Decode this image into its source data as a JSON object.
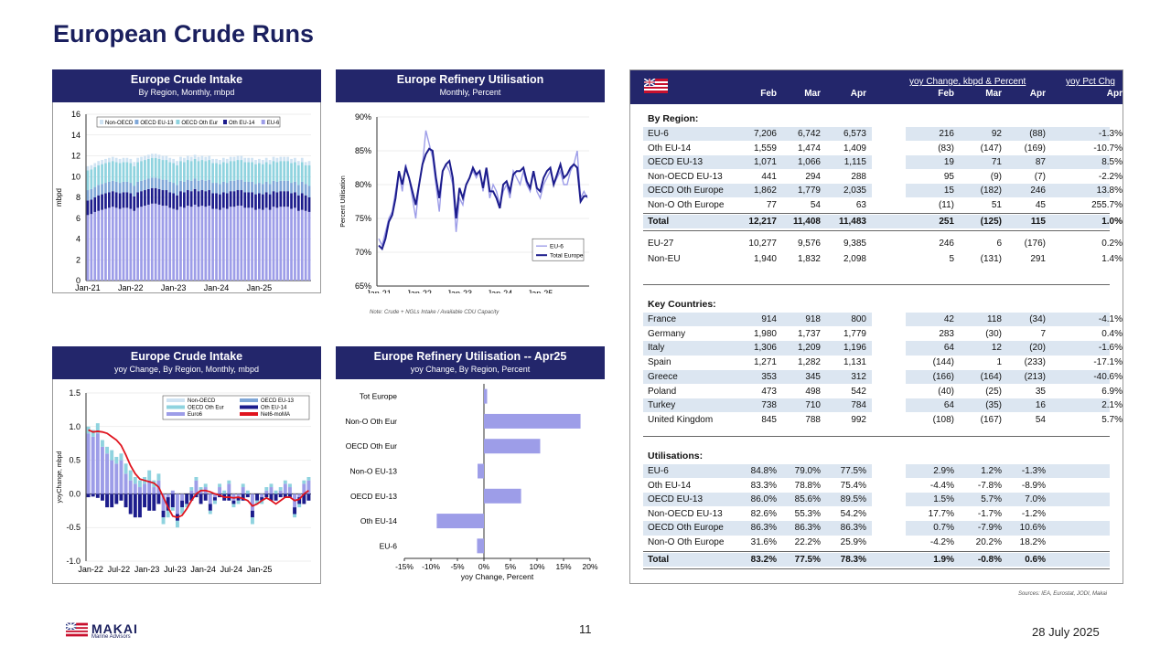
{
  "page": {
    "title": "European Crude Runs",
    "page_number": "11",
    "date": "28 July 2025",
    "sources": "Sources: IEA, Eurostat, JODI, Makai",
    "logo_text": "MAKAI",
    "logo_sub": "Marine Advisors"
  },
  "panels": {
    "p1": {
      "title": "Europe Crude Intake",
      "subtitle": "By Region, Monthly, mbpd"
    },
    "p2": {
      "title": "Europe Refinery Utilisation",
      "subtitle": "Monthly, Percent",
      "note": "Note: Crude + NGLs Intake / Available CDU Capacity"
    },
    "p3": {
      "title": "Europe Crude Intake",
      "subtitle": "yoy Change, By Region, Monthly, mbpd"
    },
    "p4": {
      "title": "Europe Refinery Utilisation -- Apr25",
      "subtitle": "yoy Change, By Region, Percent"
    }
  },
  "colors": {
    "navy": "#23266b",
    "eu6": "#9d9de8",
    "oth14": "#1c1c8c",
    "oecdoth": "#8fd3df",
    "oecd13": "#7fa7d8",
    "nonoecd": "#cfe3f3",
    "red": "#e0141e"
  },
  "chart_data": [
    {
      "type": "bar",
      "stacked": true,
      "ylabel": "mbpd",
      "ylim": [
        0,
        16
      ],
      "yticks": [
        "0",
        "2",
        "4",
        "6",
        "8",
        "10",
        "12",
        "14",
        "16"
      ],
      "xticks": [
        "Jan-21",
        "Jan-22",
        "Jan-23",
        "Jan-24",
        "Jan-25"
      ],
      "legend": [
        "Non-OECD",
        "OECD EU-13",
        "OECD Oth Eur",
        "Oth EU-14",
        "EU-6"
      ],
      "series": [
        {
          "name": "EU-6",
          "values": [
            6.3,
            6.4,
            6.6,
            6.7,
            6.8,
            6.9,
            7.0,
            7.1,
            7.0,
            6.9,
            7.0,
            7.0,
            6.9,
            6.7,
            7.0,
            7.1,
            7.2,
            7.3,
            7.4,
            7.4,
            7.3,
            7.2,
            7.2,
            7.0,
            6.9,
            6.8,
            7.1,
            7.0,
            7.2,
            7.1,
            7.3,
            7.1,
            7.2,
            7.1,
            7.2,
            6.9,
            6.9,
            6.8,
            7.0,
            6.9,
            7.1,
            7.1,
            7.2,
            7.2,
            7.0,
            7.0,
            7.0,
            6.8,
            6.9,
            6.8,
            7.0,
            6.8,
            7.1,
            7.0,
            7.1,
            7.1,
            7.1,
            6.9,
            7.0,
            6.7,
            6.8,
            6.7,
            6.6
          ]
        },
        {
          "name": "Oth EU-14",
          "values": [
            1.4,
            1.4,
            1.4,
            1.5,
            1.5,
            1.5,
            1.5,
            1.5,
            1.5,
            1.5,
            1.5,
            1.5,
            1.5,
            1.4,
            1.5,
            1.5,
            1.5,
            1.5,
            1.5,
            1.5,
            1.5,
            1.5,
            1.5,
            1.5,
            1.5,
            1.4,
            1.5,
            1.5,
            1.5,
            1.5,
            1.5,
            1.5,
            1.5,
            1.5,
            1.5,
            1.5,
            1.5,
            1.5,
            1.5,
            1.5,
            1.5,
            1.5,
            1.5,
            1.5,
            1.5,
            1.5,
            1.5,
            1.5,
            1.5,
            1.5,
            1.5,
            1.5,
            1.5,
            1.5,
            1.5,
            1.5,
            1.5,
            1.5,
            1.5,
            1.5,
            1.6,
            1.5,
            1.4
          ]
        },
        {
          "name": "OECD EU-13",
          "values": [
            1.0,
            1.0,
            1.0,
            1.0,
            1.0,
            1.0,
            1.0,
            1.0,
            1.0,
            1.0,
            1.0,
            1.0,
            1.0,
            1.0,
            1.0,
            1.0,
            1.0,
            1.0,
            1.0,
            1.0,
            1.0,
            1.0,
            1.0,
            1.0,
            1.0,
            1.0,
            1.0,
            1.0,
            1.0,
            1.0,
            1.0,
            1.0,
            1.0,
            1.0,
            1.0,
            1.0,
            1.0,
            1.0,
            1.0,
            1.0,
            1.0,
            1.0,
            1.0,
            1.0,
            1.0,
            1.0,
            1.0,
            1.0,
            1.0,
            1.0,
            1.0,
            1.0,
            1.0,
            1.0,
            1.0,
            1.0,
            1.0,
            1.0,
            1.0,
            1.0,
            1.1,
            1.1,
            1.1
          ]
        },
        {
          "name": "OECD Oth Eur",
          "values": [
            1.9,
            1.9,
            1.9,
            1.9,
            1.9,
            1.9,
            1.9,
            1.9,
            1.9,
            1.9,
            1.9,
            1.9,
            1.9,
            1.9,
            1.9,
            1.9,
            1.9,
            1.9,
            1.9,
            1.9,
            1.9,
            1.9,
            1.9,
            1.9,
            1.9,
            1.9,
            1.9,
            1.9,
            1.9,
            1.9,
            1.9,
            1.9,
            1.9,
            1.9,
            1.9,
            1.9,
            1.9,
            1.9,
            1.9,
            1.9,
            1.9,
            1.9,
            1.9,
            1.9,
            1.9,
            1.9,
            1.9,
            1.9,
            1.9,
            1.9,
            1.9,
            1.9,
            1.9,
            1.9,
            1.9,
            1.9,
            1.9,
            1.9,
            1.9,
            1.9,
            1.9,
            1.8,
            2.0
          ]
        },
        {
          "name": "Non-OECD",
          "values": [
            0.4,
            0.4,
            0.4,
            0.4,
            0.4,
            0.4,
            0.4,
            0.4,
            0.4,
            0.4,
            0.4,
            0.4,
            0.4,
            0.4,
            0.4,
            0.4,
            0.4,
            0.4,
            0.4,
            0.4,
            0.4,
            0.4,
            0.4,
            0.4,
            0.4,
            0.4,
            0.4,
            0.4,
            0.4,
            0.4,
            0.4,
            0.4,
            0.4,
            0.4,
            0.4,
            0.4,
            0.4,
            0.4,
            0.4,
            0.4,
            0.4,
            0.4,
            0.4,
            0.4,
            0.4,
            0.4,
            0.4,
            0.4,
            0.4,
            0.4,
            0.4,
            0.4,
            0.4,
            0.4,
            0.4,
            0.4,
            0.4,
            0.4,
            0.4,
            0.4,
            0.4,
            0.3,
            0.4
          ]
        }
      ]
    },
    {
      "type": "line",
      "ylabel": "Percent Utilisation",
      "ylim": [
        65,
        90
      ],
      "yticks": [
        "65%",
        "70%",
        "75%",
        "80%",
        "85%",
        "90%"
      ],
      "xticks": [
        "Jan-21",
        "Jan-22",
        "Jan-23",
        "Jan-24",
        "Jan-25"
      ],
      "series": [
        {
          "name": "EU-6",
          "values": [
            72,
            71,
            73,
            75,
            76,
            79,
            82,
            79,
            83,
            81,
            78,
            75,
            80,
            83,
            88,
            86,
            84,
            80,
            76,
            82,
            83,
            82,
            80,
            73,
            78,
            77,
            80,
            81,
            82,
            81,
            82,
            79,
            82,
            78,
            80,
            79,
            77,
            79,
            80,
            78,
            82,
            81,
            80,
            82,
            80,
            79,
            82,
            79,
            78,
            80,
            81,
            82,
            80,
            81,
            82,
            80,
            80,
            82,
            83,
            85,
            78,
            79,
            78
          ]
        },
        {
          "name": "Total Europe",
          "values": [
            71,
            70.5,
            72,
            74.5,
            75.5,
            78,
            82,
            80,
            82.5,
            81,
            79,
            77,
            80,
            83,
            84.5,
            85.3,
            85,
            81,
            78,
            82,
            83,
            83.5,
            81,
            75,
            79.5,
            78,
            80,
            81,
            82.5,
            81.5,
            82,
            79.5,
            82.5,
            79,
            79,
            78,
            76.5,
            80,
            80.5,
            79,
            81.5,
            82,
            82,
            82.5,
            80.5,
            79.5,
            82,
            79.5,
            79,
            81,
            82,
            82.5,
            80,
            81.5,
            83,
            81,
            81.5,
            82.5,
            83,
            82.5,
            77.5,
            78.3,
            78.3
          ]
        }
      ]
    },
    {
      "type": "bar",
      "stacked": true,
      "ylabel": "yoyChange, mbpd",
      "ylim": [
        -1.0,
        1.5
      ],
      "yticks": [
        "-1.0",
        "-0.5",
        "0.0",
        "0.5",
        "1.0",
        "1.5"
      ],
      "xticks": [
        "Jan-22",
        "Jul-22",
        "Jan-23",
        "Jul-23",
        "Jan-24",
        "Jul-24",
        "Jan-25"
      ],
      "legend": [
        "Non-OECD",
        "OECD EU-13",
        "OECD Oth Eur",
        "Oth EU-14",
        "Euro6",
        "Net6-moMA"
      ],
      "series": [
        {
          "name": "Euro6",
          "values": [
            0.9,
            0.85,
            0.9,
            0.7,
            0.6,
            0.5,
            0.45,
            0.5,
            0.3,
            0.2,
            0.15,
            0.1,
            0.15,
            0.2,
            0.1,
            0.2,
            -0.25,
            -0.05,
            0.05,
            -0.3,
            -0.1,
            0.0,
            0.05,
            0.2,
            0.05,
            0.1,
            -0.15,
            -0.05,
            0.1,
            0.0,
            0.15,
            -0.1,
            -0.05,
            0.1,
            0.0,
            -0.25,
            0.0,
            -0.05,
            0.05,
            0.1,
            0.0,
            0.05,
            0.15,
            0.1,
            -0.2,
            -0.05,
            0.15,
            0.2
          ]
        },
        {
          "name": "Oth EU-14",
          "values": [
            -0.05,
            -0.04,
            -0.06,
            -0.1,
            -0.2,
            -0.2,
            -0.15,
            -0.1,
            -0.2,
            -0.3,
            -0.35,
            -0.35,
            -0.2,
            -0.25,
            -0.25,
            -0.15,
            -0.1,
            -0.2,
            -0.2,
            -0.1,
            -0.1,
            -0.15,
            -0.1,
            -0.05,
            -0.15,
            -0.1,
            -0.1,
            -0.05,
            -0.05,
            -0.1,
            -0.1,
            -0.05,
            -0.05,
            -0.1,
            -0.05,
            -0.1,
            -0.1,
            -0.05,
            -0.05,
            -0.1,
            -0.1,
            -0.05,
            -0.05,
            -0.05,
            -0.1,
            -0.1,
            -0.15,
            -0.1
          ]
        },
        {
          "name": "OECD Oth Eur",
          "values": [
            0.1,
            0.1,
            0.15,
            0.1,
            0.1,
            0.15,
            0.1,
            0.1,
            0.15,
            0.15,
            0.1,
            0.1,
            0.1,
            0.15,
            0.1,
            0.1,
            -0.1,
            -0.1,
            -0.05,
            -0.1,
            -0.1,
            -0.05,
            0.05,
            0.05,
            0.05,
            0.05,
            -0.05,
            -0.05,
            0.05,
            0.05,
            0.05,
            -0.05,
            -0.05,
            0.05,
            0.05,
            -0.1,
            -0.05,
            -0.05,
            0.05,
            0.05,
            0.05,
            0.05,
            0.05,
            0.05,
            -0.05,
            -0.05,
            0.05,
            0.05
          ]
        }
      ],
      "line": {
        "name": "Net6-moMA",
        "values": [
          0.95,
          0.92,
          0.93,
          0.92,
          0.9,
          0.85,
          0.8,
          0.72,
          0.58,
          0.42,
          0.3,
          0.22,
          0.2,
          0.18,
          0.16,
          0.1,
          -0.05,
          -0.2,
          -0.33,
          -0.35,
          -0.32,
          -0.22,
          -0.1,
          0.0,
          0.05,
          0.05,
          0.03,
          0.0,
          -0.02,
          -0.05,
          -0.05,
          -0.06,
          -0.05,
          -0.07,
          -0.1,
          -0.18,
          -0.15,
          -0.1,
          -0.06,
          -0.1,
          -0.15,
          -0.1,
          -0.05,
          -0.05,
          -0.1,
          -0.08,
          0.0,
          0.05
        ]
      }
    },
    {
      "type": "bar",
      "orientation": "horizontal",
      "xlabel": "yoy Change, Percent",
      "xlim": [
        -15,
        20
      ],
      "xticks": [
        "-15%",
        "-10%",
        "-5%",
        "0%",
        "5%",
        "10%",
        "15%",
        "20%"
      ],
      "categories": [
        "Tot Europe",
        "Non-O Oth Eur",
        "OECD Oth Eur",
        "Non-O EU-13",
        "OECD EU-13",
        "Oth EU-14",
        "EU-6"
      ],
      "values": [
        0.6,
        18.2,
        10.6,
        -1.2,
        7.0,
        -8.9,
        -1.3
      ]
    }
  ],
  "table": {
    "header_group1": "yoy Change, kbpd & Percent",
    "header_group2": "yoy Pct Chg",
    "cols": [
      "Feb",
      "Mar",
      "Apr",
      "Feb",
      "Mar",
      "Apr",
      "Apr"
    ],
    "sections": {
      "region": "By Region:",
      "countries": "Key Countries:",
      "util": "Utilisations:"
    },
    "region_rows": [
      [
        "EU-6",
        "7,206",
        "6,742",
        "6,573",
        "216",
        "92",
        "(88)",
        "-1.3%"
      ],
      [
        "Oth EU-14",
        "1,559",
        "1,474",
        "1,409",
        "(83)",
        "(147)",
        "(169)",
        "-10.7%"
      ],
      [
        "OECD EU-13",
        "1,071",
        "1,066",
        "1,115",
        "19",
        "71",
        "87",
        "8.5%"
      ],
      [
        "Non-OECD EU-13",
        "441",
        "294",
        "288",
        "95",
        "(9)",
        "(7)",
        "-2.2%"
      ],
      [
        "OECD Oth Europe",
        "1,862",
        "1,779",
        "2,035",
        "15",
        "(182)",
        "246",
        "13.8%"
      ],
      [
        "Non-O Oth Europe",
        "77",
        "54",
        "63",
        "(11)",
        "51",
        "45",
        "255.7%"
      ]
    ],
    "region_total": [
      "Total",
      "12,217",
      "11,408",
      "11,483",
      "251",
      "(125)",
      "115",
      "1.0%"
    ],
    "eu_rows": [
      [
        "EU-27",
        "10,277",
        "9,576",
        "9,385",
        "246",
        "6",
        "(176)",
        "0.2%"
      ],
      [
        "Non-EU",
        "1,940",
        "1,832",
        "2,098",
        "5",
        "(131)",
        "291",
        "1.4%"
      ]
    ],
    "country_rows": [
      [
        "France",
        "914",
        "918",
        "800",
        "42",
        "118",
        "(34)",
        "-4.1%"
      ],
      [
        "Germany",
        "1,980",
        "1,737",
        "1,779",
        "283",
        "(30)",
        "7",
        "0.4%"
      ],
      [
        "Italy",
        "1,306",
        "1,209",
        "1,196",
        "64",
        "12",
        "(20)",
        "-1.6%"
      ],
      [
        "Spain",
        "1,271",
        "1,282",
        "1,131",
        "(144)",
        "1",
        "(233)",
        "-17.1%"
      ],
      [
        "Greece",
        "353",
        "345",
        "312",
        "(166)",
        "(164)",
        "(213)",
        "-40.6%"
      ],
      [
        "Poland",
        "473",
        "498",
        "542",
        "(40)",
        "(25)",
        "35",
        "6.9%"
      ],
      [
        "Turkey",
        "738",
        "710",
        "784",
        "64",
        "(35)",
        "16",
        "2.1%"
      ],
      [
        "United Kingdom",
        "845",
        "788",
        "992",
        "(108)",
        "(167)",
        "54",
        "5.7%"
      ]
    ],
    "util_rows": [
      [
        "EU-6",
        "84.8%",
        "79.0%",
        "77.5%",
        "2.9%",
        "1.2%",
        "-1.3%"
      ],
      [
        "Oth EU-14",
        "83.3%",
        "78.8%",
        "75.4%",
        "-4.4%",
        "-7.8%",
        "-8.9%"
      ],
      [
        "OECD EU-13",
        "86.0%",
        "85.6%",
        "89.5%",
        "1.5%",
        "5.7%",
        "7.0%"
      ],
      [
        "Non-OECD EU-13",
        "82.6%",
        "55.3%",
        "54.2%",
        "17.7%",
        "-1.7%",
        "-1.2%"
      ],
      [
        "OECD Oth Europe",
        "86.3%",
        "86.3%",
        "86.3%",
        "0.7%",
        "-7.9%",
        "10.6%"
      ],
      [
        "Non-O Oth Europe",
        "31.6%",
        "22.2%",
        "25.9%",
        "-4.2%",
        "20.2%",
        "18.2%"
      ]
    ],
    "util_total": [
      "Total",
      "83.2%",
      "77.5%",
      "78.3%",
      "1.9%",
      "-0.8%",
      "0.6%"
    ]
  }
}
